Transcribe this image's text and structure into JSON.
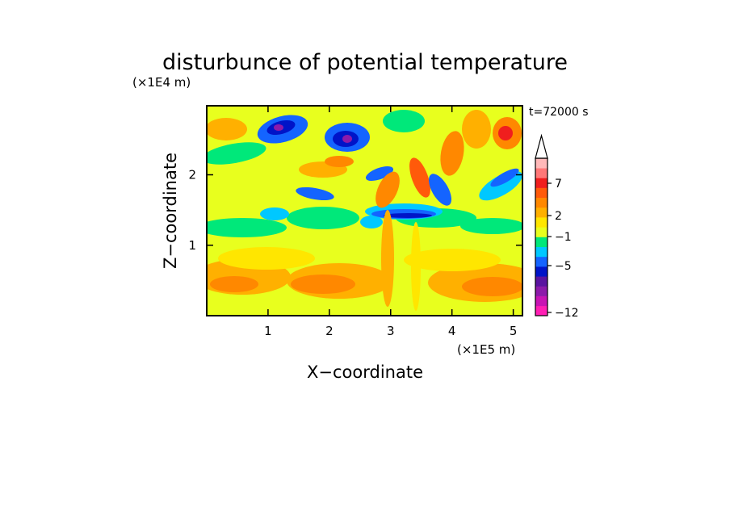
{
  "chart_data": {
    "type": "heatmap",
    "title": "disturbunce of potential temperature",
    "time_label": "t=72000 s",
    "xlabel": "X−coordinate",
    "ylabel": "Z−coordinate",
    "x_unit": "(×1E5 m)",
    "y_unit": "(×1E4 m)",
    "xlim": [
      0,
      5.15
    ],
    "ylim": [
      0,
      2.98
    ],
    "xticks": [
      1,
      2,
      3,
      4,
      5
    ],
    "yticks": [
      1,
      2
    ],
    "colorbar": {
      "tick_labels": [
        "7",
        "2",
        "−1",
        "−5",
        "−12"
      ],
      "extend": "max",
      "colors": [
        "#ff1fb4",
        "#c814b4",
        "#8c1aaa",
        "#5a14a0",
        "#0014c8",
        "#1464ff",
        "#00c8ff",
        "#00e87a",
        "#e8ff1e",
        "#ffe600",
        "#ffb000",
        "#ff8800",
        "#ff5a0a",
        "#f01e1e",
        "#ff7878",
        "#ffb9b9"
      ]
    },
    "grid": false
  }
}
